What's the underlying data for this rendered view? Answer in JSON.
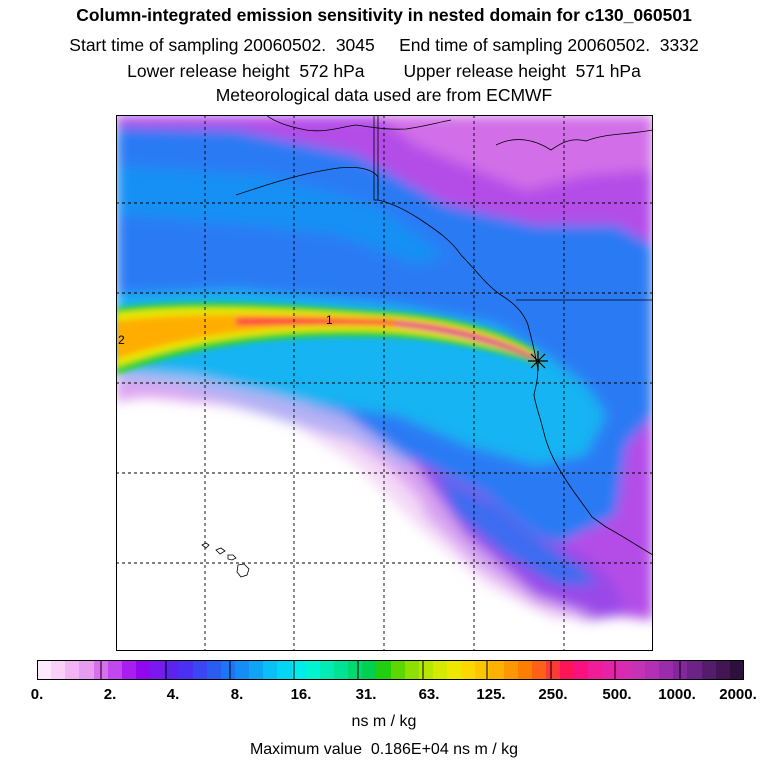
{
  "header": {
    "title": "Column-integrated emission sensitivity in nested domain for c130_060501",
    "line2": "Start time of sampling 20060502.  3045     End time of sampling 20060502.  3332",
    "line3": "Lower release height  572 hPa        Upper release height  571 hPa",
    "line4": "Meteorological data used are from ECMWF"
  },
  "map": {
    "contour_labels": [
      "1",
      "2"
    ],
    "release_marker": "star-icon",
    "grid_style": "dashed"
  },
  "colorbar": {
    "tick_labels": [
      "0.",
      "2.",
      "4.",
      "8.",
      "16.",
      "31.",
      "63.",
      "125.",
      "250.",
      "500.",
      "1000.",
      "2000."
    ],
    "colors": [
      "#fde8fd",
      "#f8d0f8",
      "#f2b4f4",
      "#e79cf0",
      "#d870ee",
      "#c048ee",
      "#a91eee",
      "#9208ee",
      "#7b18f0",
      "#5c22ee",
      "#4a30f4",
      "#3a46f4",
      "#2a5cf2",
      "#1c74f6",
      "#168cf6",
      "#10a4f6",
      "#0abef6",
      "#02d6f2",
      "#00ecec",
      "#00f4d0",
      "#00ecb4",
      "#00e294",
      "#00d870",
      "#00d050",
      "#20d010",
      "#5cd800",
      "#8ee000",
      "#b8e600",
      "#d6ea00",
      "#eee800",
      "#fcd800",
      "#ffc600",
      "#ffb000",
      "#ff9800",
      "#ff7e00",
      "#ff6018",
      "#ff3838",
      "#ff1458",
      "#fa1080",
      "#f01c98",
      "#e622a6",
      "#d62cb2",
      "#c632b4",
      "#b230b4",
      "#9a2cac",
      "#84269c",
      "#6c2286",
      "#561c6c",
      "#421654",
      "#2e103c"
    ]
  },
  "units": "ns m / kg",
  "max_value": "Maximum value  0.186E+04 ns m / kg"
}
